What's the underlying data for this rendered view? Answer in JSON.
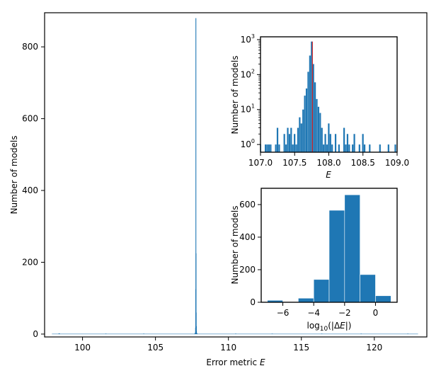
{
  "chart_data": [
    {
      "id": "main",
      "type": "bar",
      "title": "",
      "xlabel": "Error metric",
      "xlabel_var": "E",
      "ylabel": "Number of models",
      "xlim": [
        97.4,
        123.6
      ],
      "ylim": [
        -8,
        895
      ],
      "xticks": [
        100,
        105,
        110,
        115,
        120
      ],
      "yticks": [
        0,
        200,
        400,
        600,
        800
      ],
      "color": "#1f77b4",
      "bins": [
        {
          "x": 107.73,
          "y": 2
        },
        {
          "x": 107.74,
          "y": 5
        },
        {
          "x": 107.75,
          "y": 18
        },
        {
          "x": 107.76,
          "y": 125
        },
        {
          "x": 107.77,
          "y": 880
        },
        {
          "x": 107.78,
          "y": 225
        },
        {
          "x": 107.79,
          "y": 60
        },
        {
          "x": 107.8,
          "y": 22
        },
        {
          "x": 107.81,
          "y": 8
        },
        {
          "x": 107.82,
          "y": 3
        },
        {
          "x": 107.7,
          "y": 2
        },
        {
          "x": 107.85,
          "y": 2
        }
      ],
      "scatter_bins": [
        {
          "x": 98.4,
          "y": 2
        },
        {
          "x": 101.6,
          "y": 1
        },
        {
          "x": 104.2,
          "y": 1
        },
        {
          "x": 110.5,
          "y": 1
        },
        {
          "x": 113.0,
          "y": 1
        },
        {
          "x": 116.4,
          "y": 1
        },
        {
          "x": 119.1,
          "y": 1
        },
        {
          "x": 122.3,
          "y": 1
        }
      ]
    },
    {
      "id": "inset-log",
      "type": "bar",
      "xlabel": "",
      "xlabel_var": "E",
      "ylabel": "Number of models",
      "yscale": "log",
      "xlim": [
        107.0,
        109.0
      ],
      "ylim_log10": [
        -0.22,
        3.08
      ],
      "xticks": [
        107.0,
        107.5,
        108.0,
        108.5,
        109.0
      ],
      "xtick_labels": [
        "107.0",
        "107.5",
        "108.0",
        "108.5",
        "109.0"
      ],
      "yticks": [
        {
          "base": "10",
          "exp": "0",
          "log": 0
        },
        {
          "base": "10",
          "exp": "1",
          "log": 1
        },
        {
          "base": "10",
          "exp": "2",
          "log": 2
        },
        {
          "base": "10",
          "exp": "3",
          "log": 3
        }
      ],
      "bin_width": 0.025,
      "color": "#1f77b4",
      "marker_x": 107.76,
      "marker_color": "#d62728",
      "bins": [
        {
          "x": 107.0,
          "y": 1
        },
        {
          "x": 107.075,
          "y": 1
        },
        {
          "x": 107.1,
          "y": 1
        },
        {
          "x": 107.125,
          "y": 1
        },
        {
          "x": 107.15,
          "y": 1
        },
        {
          "x": 107.225,
          "y": 1
        },
        {
          "x": 107.25,
          "y": 3
        },
        {
          "x": 107.275,
          "y": 1
        },
        {
          "x": 107.35,
          "y": 2
        },
        {
          "x": 107.375,
          "y": 1
        },
        {
          "x": 107.4,
          "y": 3
        },
        {
          "x": 107.425,
          "y": 2
        },
        {
          "x": 107.45,
          "y": 3
        },
        {
          "x": 107.475,
          "y": 1
        },
        {
          "x": 107.5,
          "y": 2
        },
        {
          "x": 107.525,
          "y": 1
        },
        {
          "x": 107.55,
          "y": 3
        },
        {
          "x": 107.575,
          "y": 6
        },
        {
          "x": 107.6,
          "y": 4
        },
        {
          "x": 107.625,
          "y": 10
        },
        {
          "x": 107.65,
          "y": 25
        },
        {
          "x": 107.675,
          "y": 40
        },
        {
          "x": 107.7,
          "y": 120
        },
        {
          "x": 107.725,
          "y": 350
        },
        {
          "x": 107.75,
          "y": 880
        },
        {
          "x": 107.775,
          "y": 200
        },
        {
          "x": 107.8,
          "y": 60
        },
        {
          "x": 107.825,
          "y": 20
        },
        {
          "x": 107.85,
          "y": 12
        },
        {
          "x": 107.875,
          "y": 8
        },
        {
          "x": 107.9,
          "y": 3
        },
        {
          "x": 107.925,
          "y": 1
        },
        {
          "x": 107.95,
          "y": 2
        },
        {
          "x": 107.975,
          "y": 1
        },
        {
          "x": 108.0,
          "y": 4
        },
        {
          "x": 108.025,
          "y": 2
        },
        {
          "x": 108.05,
          "y": 1
        },
        {
          "x": 108.1,
          "y": 2
        },
        {
          "x": 108.15,
          "y": 1
        },
        {
          "x": 108.225,
          "y": 3
        },
        {
          "x": 108.25,
          "y": 1
        },
        {
          "x": 108.275,
          "y": 2
        },
        {
          "x": 108.3,
          "y": 1
        },
        {
          "x": 108.35,
          "y": 1
        },
        {
          "x": 108.375,
          "y": 2
        },
        {
          "x": 108.45,
          "y": 1
        },
        {
          "x": 108.5,
          "y": 2
        },
        {
          "x": 108.525,
          "y": 1
        },
        {
          "x": 108.6,
          "y": 1
        },
        {
          "x": 108.75,
          "y": 1
        },
        {
          "x": 108.875,
          "y": 1
        },
        {
          "x": 108.975,
          "y": 1
        }
      ]
    },
    {
      "id": "inset-delta",
      "type": "bar",
      "xlabel_prefix": "log",
      "xlabel_sub": "10",
      "xlabel_open": "(|Δ",
      "xlabel_var": "E",
      "xlabel_close": "|)",
      "ylabel": "Number of models",
      "xlim": [
        -7.4,
        1.4
      ],
      "ylim": [
        0,
        700
      ],
      "xticks": [
        -6,
        -4,
        -2,
        0
      ],
      "xtick_labels": [
        "−6",
        "−4",
        "−2",
        "0"
      ],
      "yticks": [
        0,
        200,
        400,
        600
      ],
      "color": "#1f77b4",
      "bins": [
        {
          "x0": -7.0,
          "x1": -6.0,
          "y": 12
        },
        {
          "x0": -6.0,
          "x1": -5.0,
          "y": 0
        },
        {
          "x0": -5.0,
          "x1": -4.0,
          "y": 25
        },
        {
          "x0": -4.0,
          "x1": -3.0,
          "y": 140
        },
        {
          "x0": -3.0,
          "x1": -2.0,
          "y": 565
        },
        {
          "x0": -2.0,
          "x1": -1.0,
          "y": 660
        },
        {
          "x0": -1.0,
          "x1": 0.0,
          "y": 170
        },
        {
          "x0": 0.0,
          "x1": 1.0,
          "y": 40
        }
      ]
    }
  ]
}
